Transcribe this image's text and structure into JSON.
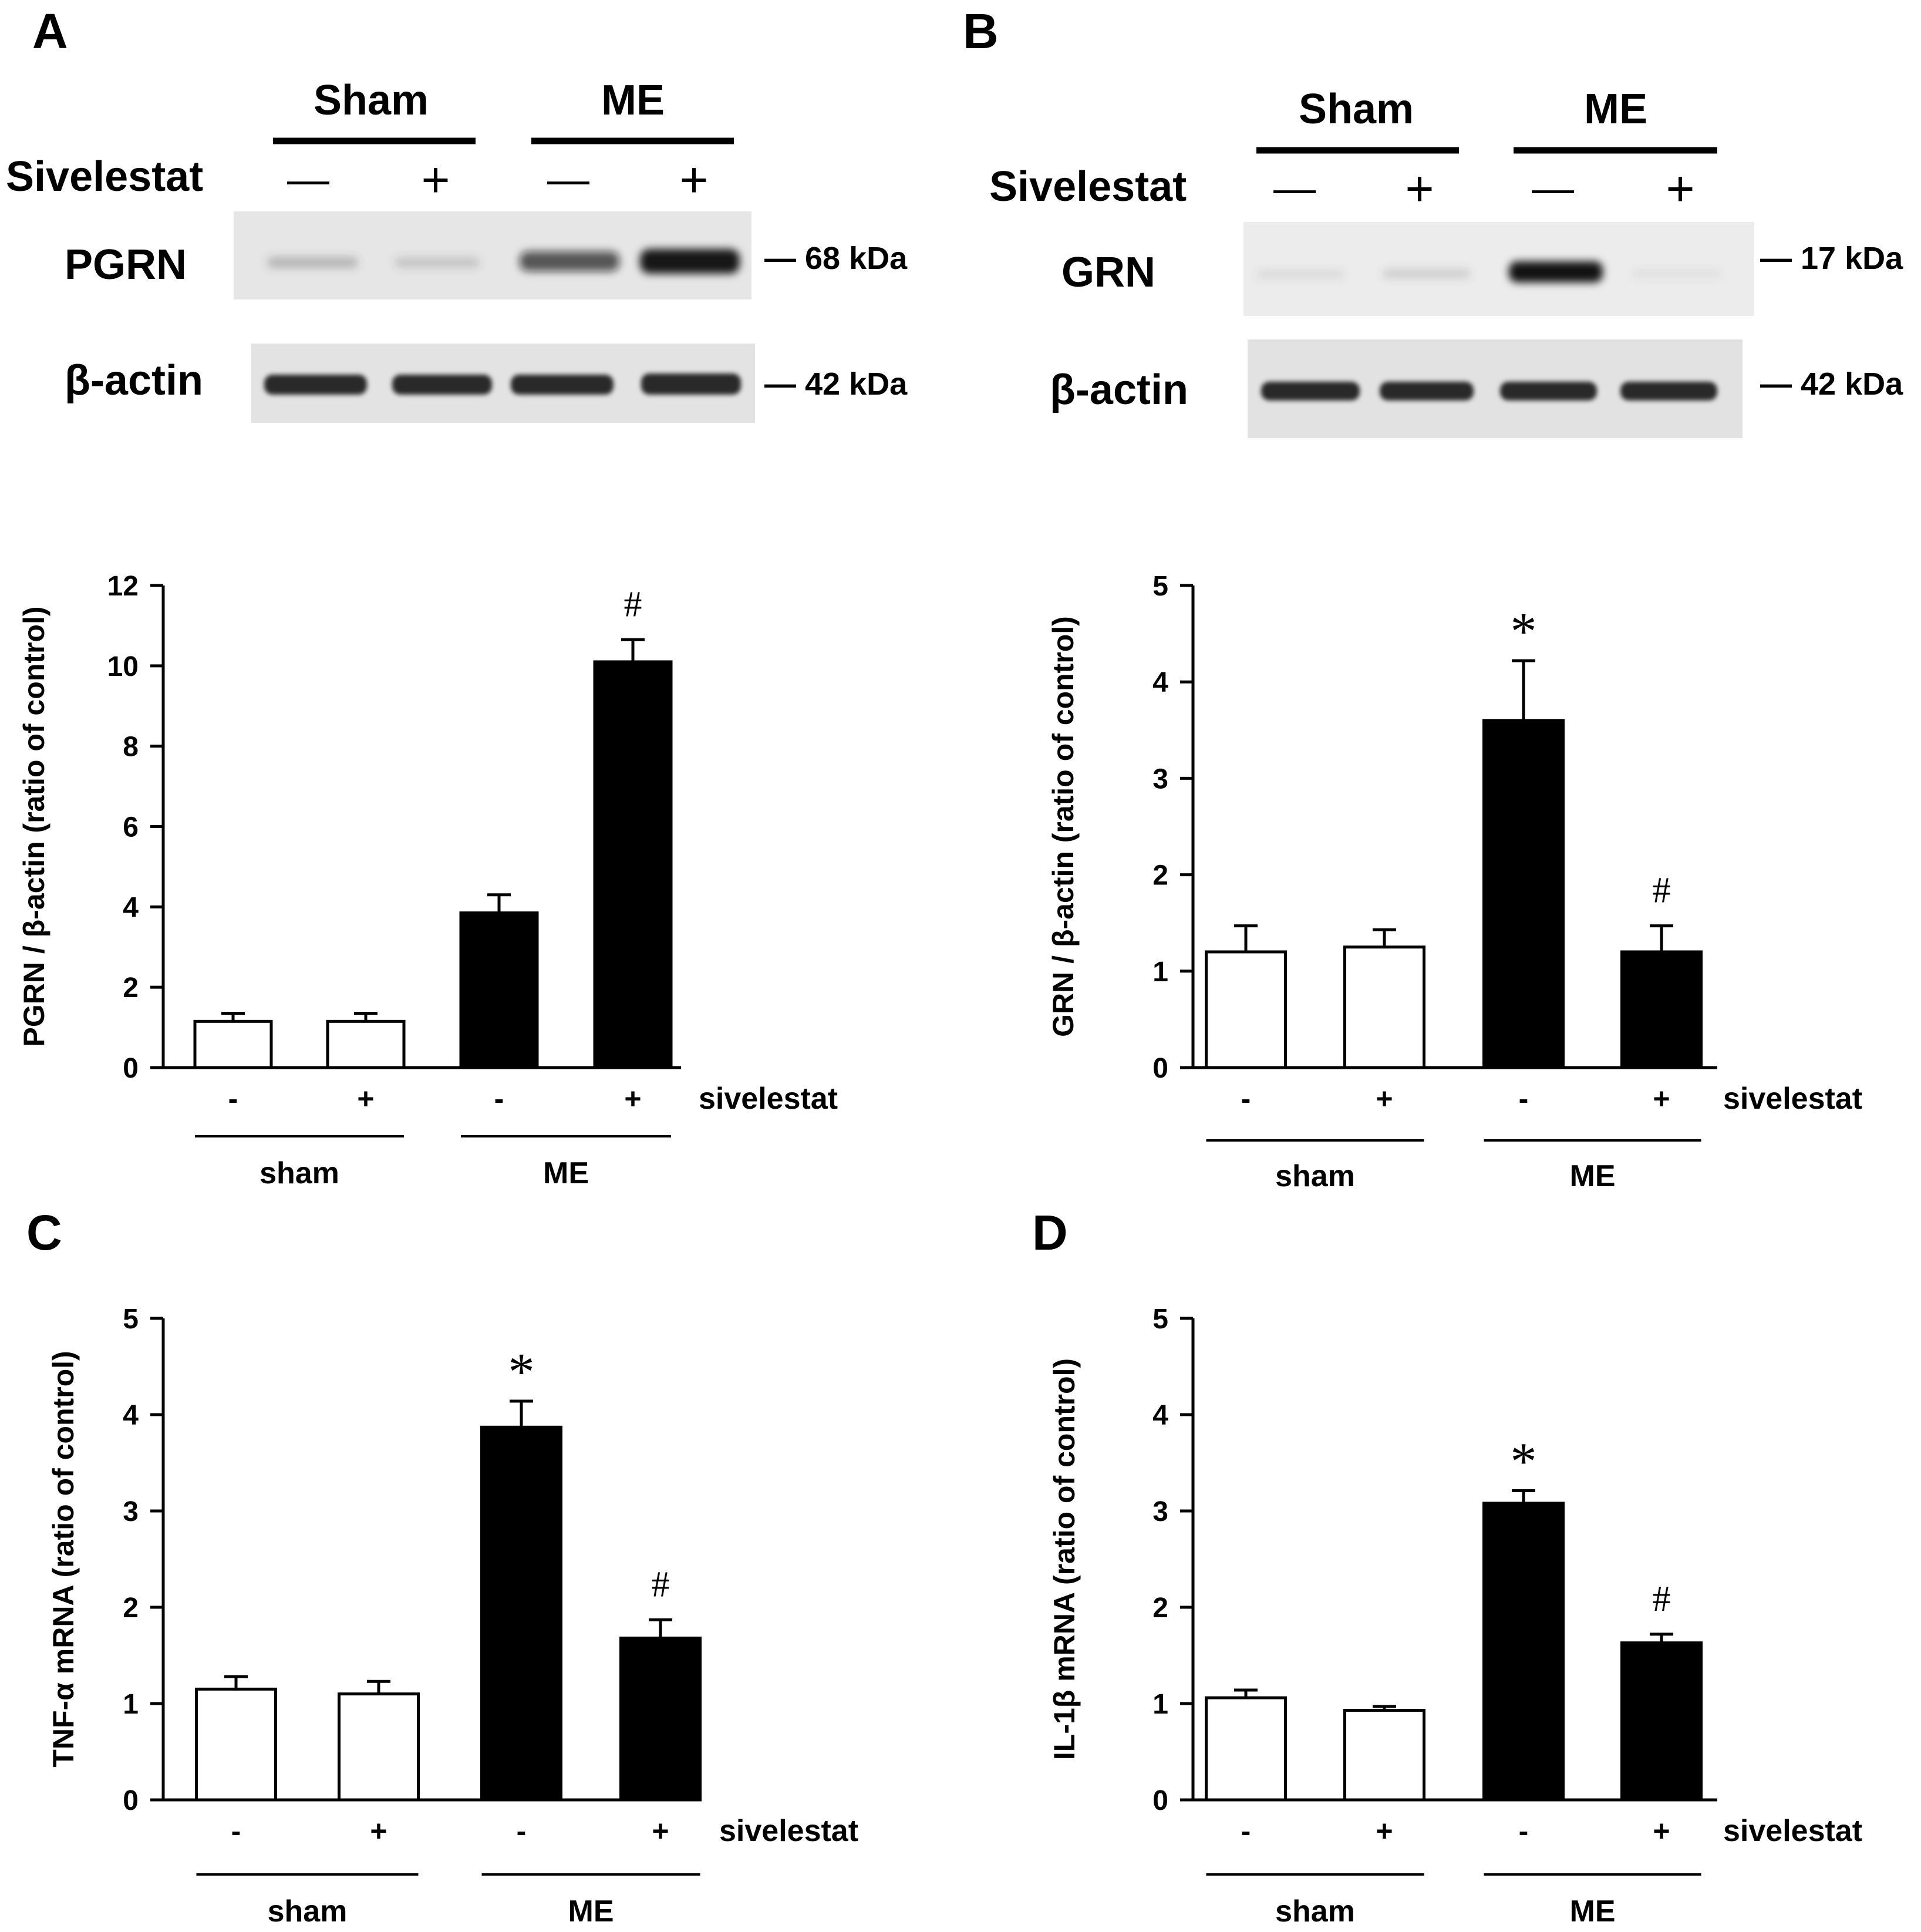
{
  "panel_a_blot": {
    "panel_label": "A",
    "group_labels": [
      "Sham",
      "ME"
    ],
    "treatment_label": "Sivelestat",
    "treatment_signs": [
      "—",
      "+",
      "—",
      "+"
    ],
    "band_labels": [
      "PGRN",
      "β-actin"
    ],
    "marker_labels": [
      "— 68 kDa",
      "— 42 kDa"
    ]
  },
  "panel_b_blot": {
    "panel_label": "B",
    "group_labels": [
      "Sham",
      "ME"
    ],
    "treatment_label": "Sivelestat",
    "treatment_signs": [
      "—",
      "+",
      "—",
      "+"
    ],
    "band_labels": [
      "GRN",
      "β-actin"
    ],
    "marker_labels": [
      "— 17 kDa",
      "— 42 kDa"
    ]
  },
  "chart_data": [
    {
      "type": "bar",
      "panel_label": "",
      "ylabel": "PGRN / β-actin (ratio of control)",
      "ylim": [
        0,
        12
      ],
      "yticks": [
        0,
        2,
        4,
        6,
        8,
        10,
        12
      ],
      "categories": [
        "-",
        "+",
        "-",
        "+"
      ],
      "treatment_label": "sivelestat",
      "groups": [
        "sham",
        "ME"
      ],
      "values": [
        1.15,
        1.15,
        3.85,
        10.1
      ],
      "errors": [
        0.2,
        0.2,
        0.45,
        0.55
      ],
      "annotations": [
        "",
        "",
        "",
        "#"
      ],
      "colors": [
        "#ffffff",
        "#ffffff",
        "#000000",
        "#000000"
      ]
    },
    {
      "type": "bar",
      "panel_label": "",
      "ylabel": "GRN / β-actin (ratio of control)",
      "ylim": [
        0,
        5
      ],
      "yticks": [
        0,
        1,
        2,
        3,
        4,
        5
      ],
      "categories": [
        "-",
        "+",
        "-",
        "+"
      ],
      "treatment_label": "sivelestat",
      "groups": [
        "sham",
        "ME"
      ],
      "values": [
        1.2,
        1.25,
        3.6,
        1.2
      ],
      "errors": [
        0.27,
        0.18,
        0.62,
        0.27
      ],
      "annotations": [
        "",
        "",
        "*",
        "#"
      ],
      "colors": [
        "#ffffff",
        "#ffffff",
        "#000000",
        "#000000"
      ]
    },
    {
      "type": "bar",
      "panel_label": "C",
      "ylabel": "TNF-α mRNA  (ratio of control)",
      "ylim": [
        0,
        5
      ],
      "yticks": [
        0,
        1,
        2,
        3,
        4,
        5
      ],
      "categories": [
        "-",
        "+",
        "-",
        "+"
      ],
      "treatment_label": "sivelestat",
      "groups": [
        "sham",
        "ME"
      ],
      "values": [
        1.15,
        1.1,
        3.87,
        1.68
      ],
      "errors": [
        0.13,
        0.13,
        0.27,
        0.19
      ],
      "annotations": [
        "",
        "",
        "*",
        "#"
      ],
      "colors": [
        "#ffffff",
        "#ffffff",
        "#000000",
        "#000000"
      ]
    },
    {
      "type": "bar",
      "panel_label": "D",
      "ylabel": "IL-1β mRNA  (ratio of control)",
      "ylim": [
        0,
        5
      ],
      "yticks": [
        0,
        1,
        2,
        3,
        4,
        5
      ],
      "categories": [
        "-",
        "+",
        "-",
        "+"
      ],
      "treatment_label": "sivelestat",
      "groups": [
        "sham",
        "ME"
      ],
      "values": [
        1.06,
        0.93,
        3.08,
        1.63
      ],
      "errors": [
        0.08,
        0.04,
        0.13,
        0.09
      ],
      "annotations": [
        "",
        "",
        "*",
        "#"
      ],
      "colors": [
        "#ffffff",
        "#ffffff",
        "#000000",
        "#000000"
      ]
    }
  ]
}
